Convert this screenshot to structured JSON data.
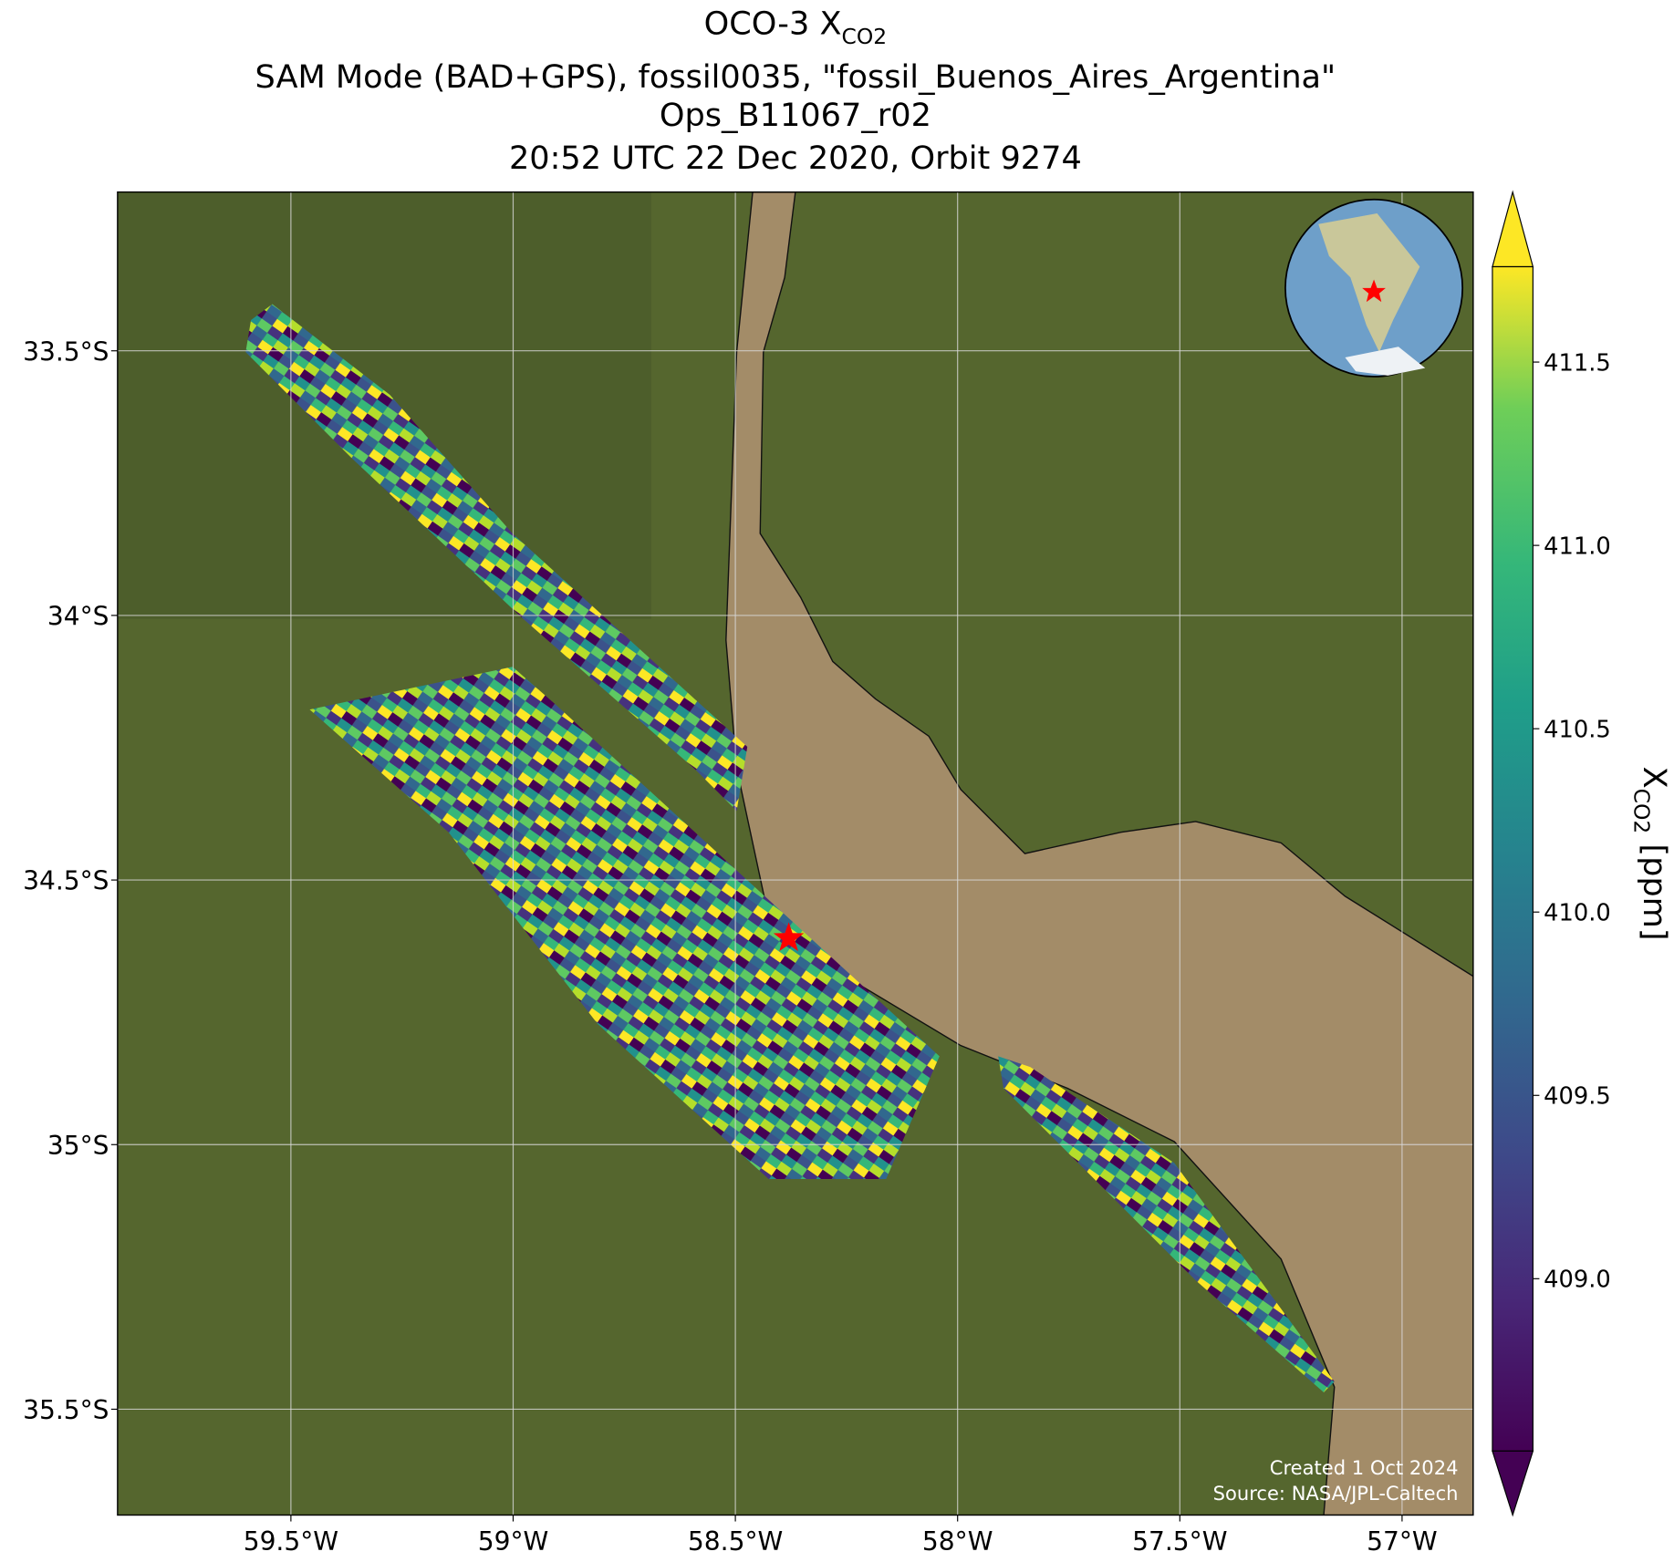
{
  "chart_data": {
    "type": "map",
    "title": {
      "text": "OCO-3 X",
      "subscript": "CO2"
    },
    "subtitle": [
      "SAM Mode (BAD+GPS), fossil0035, \"fossil_Buenos_Aires_Argentina\"",
      "Ops_B11067_r02",
      "20:52 UTC 22 Dec 2020, Orbit 9274"
    ],
    "xlim": [
      -59.89,
      -56.84
    ],
    "ylim": [
      -35.7,
      -33.2
    ],
    "xticks": [
      {
        "value": -59.5,
        "label": "59.5°W"
      },
      {
        "value": -59,
        "label": "59°W"
      },
      {
        "value": -58.5,
        "label": "58.5°W"
      },
      {
        "value": -58,
        "label": "58°W"
      },
      {
        "value": -57.5,
        "label": "57.5°W"
      },
      {
        "value": -57,
        "label": "57°W"
      }
    ],
    "yticks": [
      {
        "value": -33.5,
        "label": "33.5°S"
      },
      {
        "value": -34,
        "label": "34°S"
      },
      {
        "value": -34.5,
        "label": "34.5°S"
      },
      {
        "value": -35,
        "label": "35°S"
      },
      {
        "value": -35.5,
        "label": "35.5°S"
      }
    ],
    "grid": true,
    "target": {
      "lon": -58.38,
      "lat": -34.61
    },
    "colorbar": {
      "label": {
        "text": "X",
        "subscript": "CO2",
        "suffix": " [ppm]"
      },
      "lim": [
        408.53,
        411.76
      ],
      "ticks": [
        409.0,
        409.5,
        410.0,
        410.5,
        411.0,
        411.5
      ],
      "tick_labels": [
        "409.0",
        "409.5",
        "410.0",
        "410.5",
        "411.0",
        "411.5"
      ]
    },
    "credits": [
      "Created 1 Oct 2024",
      "Source: NASA/JPL-Caltech"
    ]
  }
}
